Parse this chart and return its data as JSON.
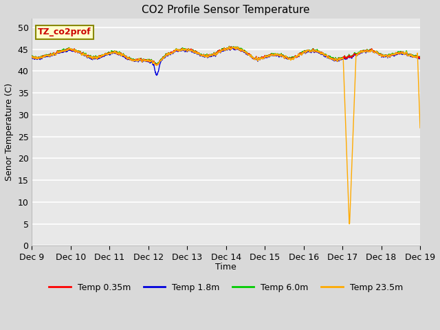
{
  "title": "CO2 Profile Sensor Temperature",
  "ylabel": "Senor Temperature (C)",
  "xlabel": "Time",
  "xlim": [
    0,
    10
  ],
  "ylim": [
    0,
    52
  ],
  "yticks": [
    0,
    5,
    10,
    15,
    20,
    25,
    30,
    35,
    40,
    45,
    50
  ],
  "xtick_labels": [
    "Dec 9",
    "Dec 10",
    "Dec 11",
    "Dec 12",
    "Dec 13",
    "Dec 14",
    "Dec 15",
    "Dec 16",
    "Dec 17",
    "Dec 18",
    "Dec 19"
  ],
  "xtick_positions": [
    0,
    1,
    2,
    3,
    4,
    5,
    6,
    7,
    8,
    9,
    10
  ],
  "legend_entries": [
    "Temp 0.35m",
    "Temp 1.8m",
    "Temp 6.0m",
    "Temp 23.5m"
  ],
  "legend_colors": [
    "#ff0000",
    "#0000dd",
    "#00cc00",
    "#ffaa00"
  ],
  "annotation_text": "TZ_co2prof",
  "fig_bg_color": "#d9d9d9",
  "plot_bg_color": "#e8e8e8",
  "grid_color": "#ffffff",
  "title_fontsize": 11,
  "axis_fontsize": 9,
  "tick_fontsize": 9,
  "linewidth": 1.0
}
